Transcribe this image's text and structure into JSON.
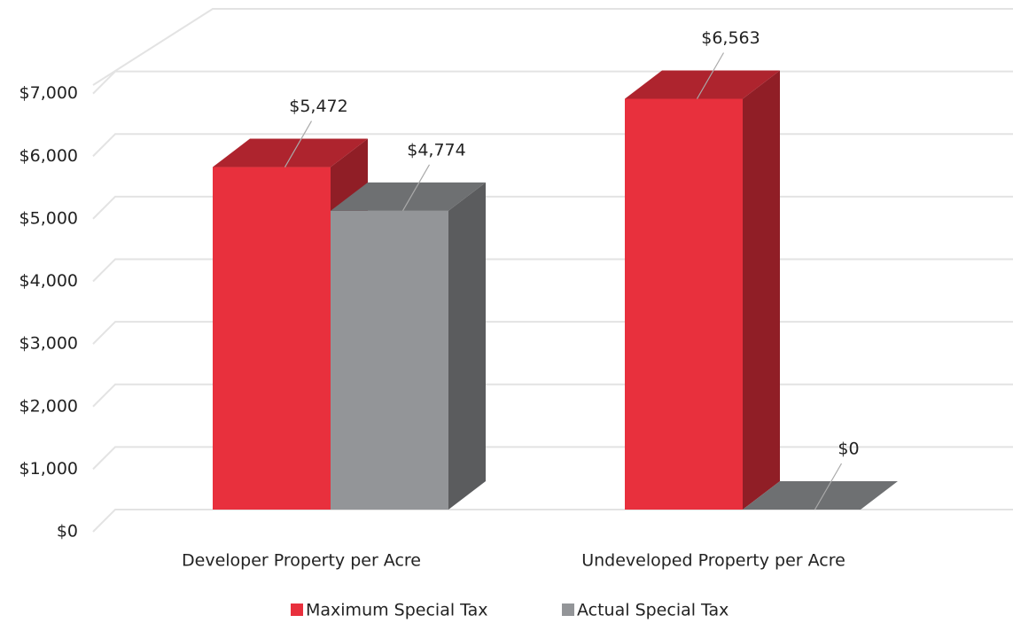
{
  "chart_data": {
    "type": "bar3d",
    "categories": [
      "Developer Property per Acre",
      "Undeveloped Property per Acre"
    ],
    "series": [
      {
        "name": "Maximum Special Tax",
        "color": "#e8303d",
        "values": [
          5472,
          6563
        ],
        "value_labels": [
          "$5,472",
          "$6,563"
        ]
      },
      {
        "name": "Actual Special Tax",
        "color": "#939598",
        "values": [
          4774,
          0
        ],
        "value_labels": [
          "$4,774",
          "$0"
        ]
      }
    ],
    "ylim": [
      0,
      8000
    ],
    "yticks": [
      {
        "value": 0,
        "label": "$0"
      },
      {
        "value": 1000,
        "label": "$1,000"
      },
      {
        "value": 2000,
        "label": "$2,000"
      },
      {
        "value": 3000,
        "label": "$3,000"
      },
      {
        "value": 4000,
        "label": "$4,000"
      },
      {
        "value": 5000,
        "label": "$5,000"
      },
      {
        "value": 6000,
        "label": "$6,000"
      },
      {
        "value": 7000,
        "label": "$7,000"
      }
    ],
    "grid": true,
    "legend": "bottom"
  }
}
